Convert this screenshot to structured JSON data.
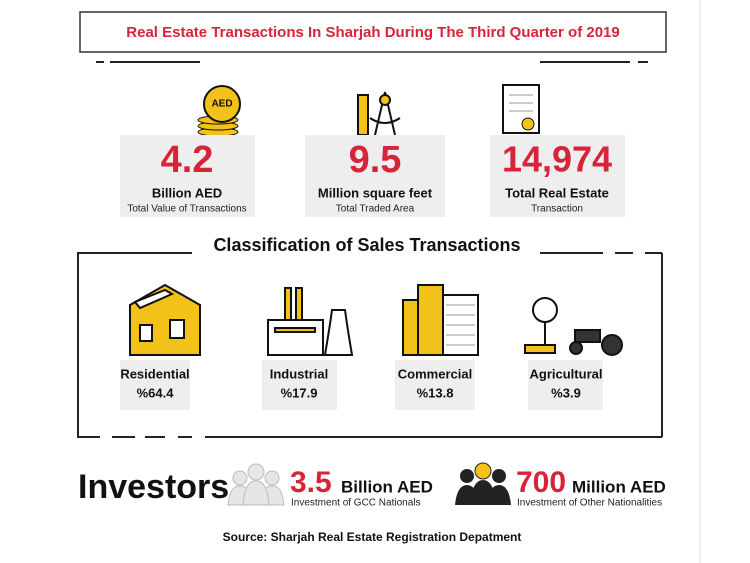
{
  "title": "Real Estate Transactions In Sharjah During The Third Quarter of 2019",
  "stats": [
    {
      "icon_label": "AED",
      "value": "4.2",
      "unit": "Billion AED",
      "caption": "Total Value of Transactions"
    },
    {
      "value": "9.5",
      "unit": "Million square feet",
      "caption": "Total Traded Area"
    },
    {
      "value": "14,974",
      "unit": "Total Real Estate",
      "caption": "Transaction"
    }
  ],
  "classification": {
    "title": "Classification of Sales  Transactions",
    "items": [
      {
        "label": "Residential",
        "value": "%64.4"
      },
      {
        "label": "Industrial",
        "value": "%17.9"
      },
      {
        "label": "Commercial",
        "value": "%13.8"
      },
      {
        "label": "Agricultural",
        "value": "%3.9"
      }
    ]
  },
  "investors": {
    "title": "Investors",
    "groups": [
      {
        "value": "3.5",
        "unit": "Billion AED",
        "caption": "Investment of GCC Nationals"
      },
      {
        "value": "700",
        "unit": "Million AED",
        "caption": "Investment of Other Nationalities"
      }
    ]
  },
  "source": "Source: Sharjah Real Estate Registration Depatment"
}
